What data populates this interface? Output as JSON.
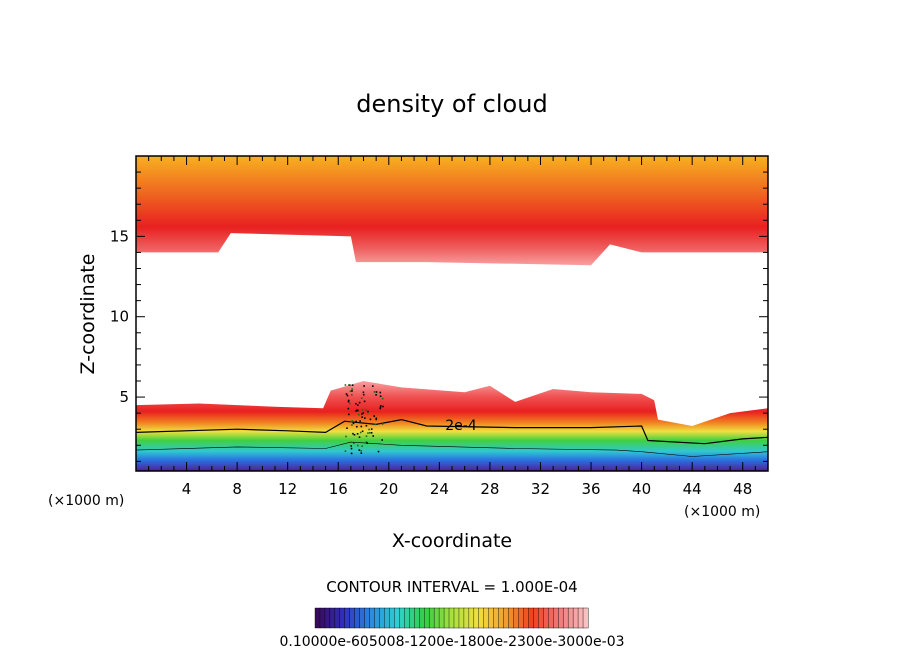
{
  "chart_data": {
    "type": "heatmap",
    "title": "density of cloud",
    "xlabel": "X-coordinate",
    "ylabel": "Z-coordinate",
    "x_unit": "(×1000 m)",
    "x_unit_right": "(×1000 m)",
    "xlim": [
      0,
      50
    ],
    "ylim": [
      0.4,
      20
    ],
    "xticks": [
      4,
      8,
      12,
      16,
      20,
      24,
      28,
      32,
      36,
      40,
      44,
      48
    ],
    "yticks": [
      5,
      10,
      15
    ],
    "contour_label": "2e-4",
    "contour_interval_text": "CONTOUR INTERVAL = 1.000E-04",
    "colorbar_labels_text": "0.10000e-605008-1200e-1800e-2300e-3000e-03",
    "colorbar_colors": [
      "#3a0a5a",
      "#3030c0",
      "#2a8ae0",
      "#30d0d0",
      "#30d040",
      "#a8e040",
      "#f0e040",
      "#f0a030",
      "#f04020",
      "#f07878",
      "#f8c0c0"
    ],
    "grid": false,
    "legend": "none"
  }
}
